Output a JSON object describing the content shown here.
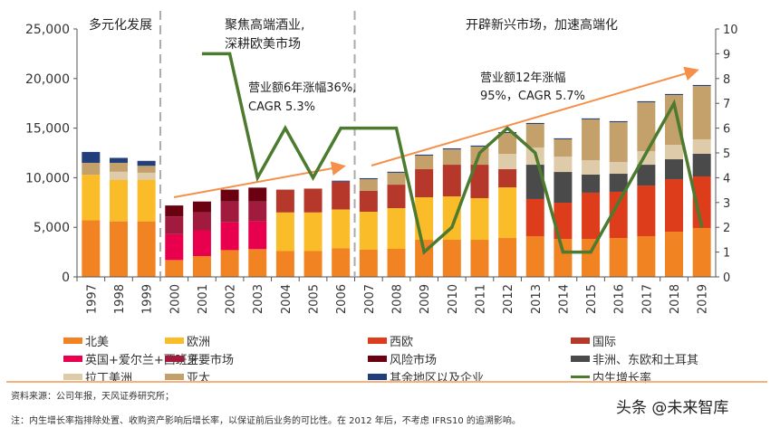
{
  "chart_data": {
    "type": "bar",
    "stacked": true,
    "categories": [
      "1997",
      "1998",
      "1999",
      "2000",
      "2001",
      "2002",
      "2003",
      "2004",
      "2005",
      "2006",
      "2007",
      "2008",
      "2009",
      "2010",
      "2011",
      "2012",
      "2013",
      "2014",
      "2015",
      "2016",
      "2017",
      "2018",
      "2019"
    ],
    "ylim": [
      0,
      25000
    ],
    "yticks": [
      "0",
      "5,000",
      "10,000",
      "15,000",
      "20,000",
      "25,000"
    ],
    "y2lim": [
      0,
      10
    ],
    "y2ticks": [
      "0",
      "1",
      "2",
      "3",
      "4",
      "5",
      "6",
      "7",
      "8",
      "9",
      "10"
    ],
    "series": [
      {
        "name": "北美",
        "color": "#F28322",
        "values": [
          5700,
          5600,
          5600,
          1700,
          2100,
          2700,
          2800,
          2600,
          2600,
          2900,
          2740,
          2830,
          3740,
          3740,
          3740,
          3920,
          4100,
          3830,
          3830,
          3920,
          4100,
          4560,
          4930
        ]
      },
      {
        "name": "欧洲",
        "color": "#FBBC2A",
        "values": [
          4600,
          4200,
          4200,
          0,
          0,
          0,
          0,
          3900,
          3900,
          3900,
          3830,
          4100,
          4290,
          4380,
          4200,
          5110,
          0,
          0,
          0,
          0,
          0,
          0,
          0
        ]
      },
      {
        "name": "西欧",
        "color": "#DE3D1C",
        "values": [
          0,
          0,
          0,
          0,
          0,
          0,
          0,
          0,
          0,
          0,
          0,
          0,
          0,
          0,
          0,
          0,
          3750,
          3650,
          4660,
          4660,
          5110,
          5290,
          5200
        ]
      },
      {
        "name": "英国+爱尔兰+西班牙",
        "color": "#E8004F",
        "values": [
          0,
          0,
          0,
          2600,
          2600,
          2800,
          2800,
          0,
          0,
          0,
          0,
          0,
          0,
          0,
          0,
          0,
          0,
          0,
          0,
          0,
          0,
          0,
          0
        ]
      },
      {
        "name": "主要市场",
        "color": "#A11B3F",
        "values": [
          0,
          0,
          0,
          1800,
          1800,
          2100,
          2000,
          0,
          0,
          0,
          0,
          0,
          0,
          0,
          0,
          0,
          0,
          0,
          0,
          0,
          0,
          0,
          0
        ]
      },
      {
        "name": "风险市场",
        "color": "#6B0010",
        "values": [
          0,
          0,
          0,
          1100,
          1100,
          1200,
          1400,
          0,
          0,
          0,
          0,
          0,
          0,
          0,
          0,
          0,
          0,
          0,
          0,
          0,
          0,
          0,
          0
        ]
      },
      {
        "name": "国际",
        "color": "#B5382B",
        "values": [
          0,
          0,
          0,
          0,
          0,
          0,
          0,
          2300,
          2400,
          2800,
          2100,
          2370,
          2830,
          3190,
          3370,
          1830,
          0,
          0,
          0,
          0,
          0,
          0,
          0
        ]
      },
      {
        "name": "非洲、东欧和土耳其",
        "color": "#4A4A4A",
        "values": [
          0,
          0,
          0,
          0,
          0,
          0,
          0,
          0,
          0,
          0,
          0,
          0,
          0,
          0,
          0,
          0,
          3460,
          3100,
          1820,
          1820,
          2100,
          2010,
          2280
        ]
      },
      {
        "name": "拉丁美洲",
        "color": "#DDCBAA",
        "values": [
          0,
          800,
          700,
          0,
          0,
          0,
          0,
          0,
          0,
          0,
          0,
          0,
          0,
          0,
          0,
          1550,
          1740,
          1550,
          1460,
          1190,
          1370,
          1460,
          1460
        ]
      },
      {
        "name": "亚太",
        "color": "#C4A06B",
        "values": [
          1200,
          900,
          700,
          0,
          0,
          0,
          0,
          0,
          0,
          0,
          1180,
          1200,
          1370,
          1550,
          1830,
          2090,
          2370,
          1740,
          4110,
          4010,
          4930,
          5020,
          5380
        ]
      },
      {
        "name": "其余地区以及企业",
        "color": "#233F7A",
        "values": [
          1100,
          500,
          500,
          0,
          0,
          0,
          0,
          0,
          0,
          100,
          100,
          100,
          100,
          100,
          100,
          100,
          100,
          100,
          100,
          100,
          100,
          100,
          100
        ]
      }
    ],
    "line_series": {
      "name": "内生增长率",
      "color": "#4C7A2E",
      "axis": "right",
      "values": [
        null,
        null,
        null,
        null,
        9,
        9,
        4,
        6,
        4,
        6,
        6,
        6,
        1,
        2,
        5,
        6,
        5,
        1,
        1,
        3,
        5,
        7,
        2
      ]
    },
    "annotations": {
      "phase1": "多元化发展",
      "phase2_l1": "聚焦高端酒业,",
      "phase2_l2": "深耕欧美市场",
      "phase3": "开辟新兴市场，加速高端化",
      "growth1_l1": "营业额6年涨幅36%,",
      "growth1_l2": "CAGR 5.3%",
      "growth2_l1": "营业额12年涨幅",
      "growth2_l2": "95%，CAGR 5.7%"
    },
    "arrow_color": "#F4904A",
    "grid": false
  },
  "footer": {
    "source": "资料来源：公司年报，天风证券研究所；",
    "note": "注：内生增长率指排除处置、收购资产影响后增长率，以保证前后业务的可比性。在 2012 年后，不考虑 IFRS10 的追溯影响。",
    "watermark": "头条 @未来智库"
  }
}
